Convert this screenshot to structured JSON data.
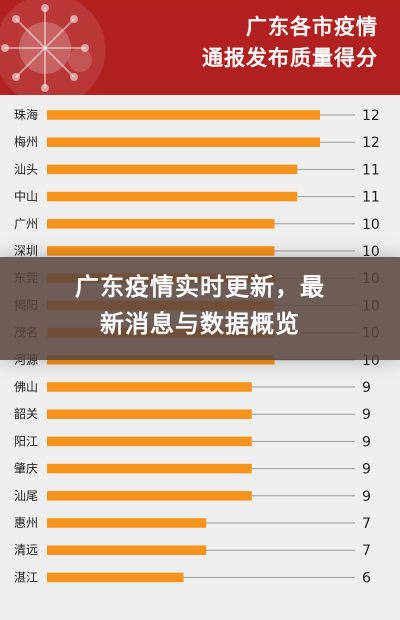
{
  "poster": {
    "title_line1": "广东各市疫情",
    "title_line2": "通报发布质量得分"
  },
  "overlay": {
    "headline_line1": "广东疫情实时更新，最",
    "headline_line2": "新消息与数据概览"
  },
  "colors": {
    "header_bg": "#a51b1f",
    "panel_bg": "#efefef",
    "bar": "#f7941d",
    "text": "#222222"
  },
  "chart_data": {
    "type": "bar",
    "orientation": "horizontal",
    "title": "广东各市疫情通报发布质量得分",
    "categories": [
      "珠海",
      "梅州",
      "汕头",
      "中山",
      "广州",
      "深圳",
      "东莞",
      "揭阳",
      "茂名",
      "河源",
      "佛山",
      "韶关",
      "阳江",
      "肇庆",
      "汕尾",
      "惠州",
      "清远",
      "湛江"
    ],
    "values": [
      12,
      12,
      11,
      11,
      10,
      10,
      10,
      10,
      10,
      10,
      9,
      9,
      9,
      9,
      9,
      7,
      7,
      6
    ],
    "xlim": [
      0,
      12
    ],
    "grid": false
  }
}
